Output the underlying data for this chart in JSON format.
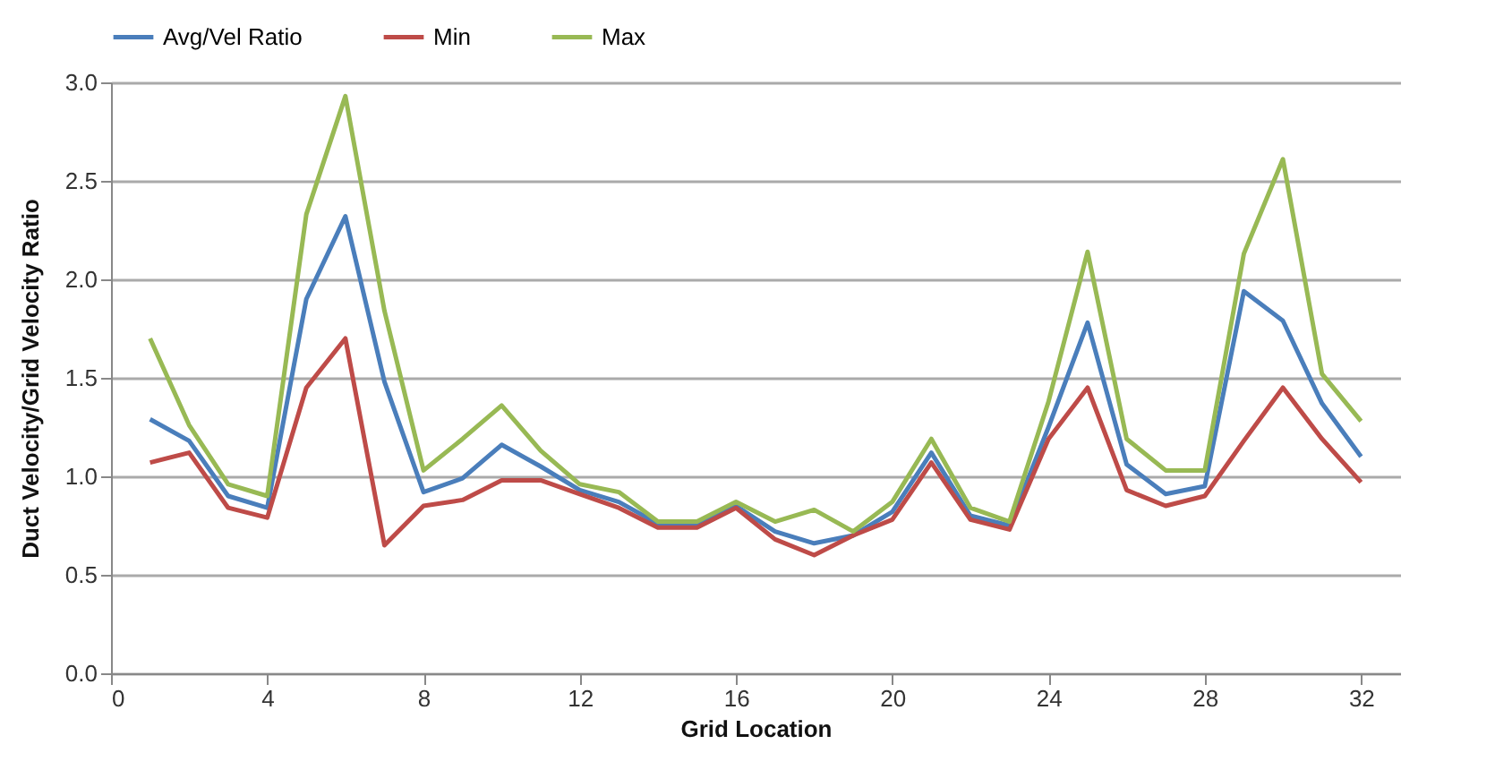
{
  "chart_data": {
    "type": "line",
    "xlabel": "Grid Location",
    "ylabel": "Duct Velocity/Grid Velocity Ratio",
    "x": [
      1,
      2,
      3,
      4,
      5,
      6,
      7,
      8,
      9,
      10,
      11,
      12,
      13,
      14,
      15,
      16,
      17,
      18,
      19,
      20,
      21,
      22,
      23,
      24,
      25,
      26,
      27,
      28,
      29,
      30,
      31,
      32
    ],
    "series": [
      {
        "name": "Avg/Vel Ratio",
        "color": "#4a7ebb",
        "values": [
          1.29,
          1.18,
          0.9,
          0.84,
          1.9,
          2.32,
          1.48,
          0.92,
          0.99,
          1.16,
          1.05,
          0.93,
          0.87,
          0.76,
          0.76,
          0.85,
          0.72,
          0.66,
          0.7,
          0.82,
          1.12,
          0.8,
          0.75,
          1.25,
          1.78,
          1.06,
          0.91,
          0.95,
          1.94,
          1.79,
          1.37,
          1.1
        ]
      },
      {
        "name": "Min",
        "color": "#be4b48",
        "values": [
          1.07,
          1.12,
          0.84,
          0.79,
          1.45,
          1.7,
          0.65,
          0.85,
          0.88,
          0.98,
          0.98,
          0.91,
          0.84,
          0.74,
          0.74,
          0.84,
          0.68,
          0.6,
          0.7,
          0.78,
          1.07,
          0.78,
          0.73,
          1.19,
          1.45,
          0.93,
          0.85,
          0.9,
          1.18,
          1.45,
          1.19,
          0.97
        ]
      },
      {
        "name": "Max",
        "color": "#98b954",
        "values": [
          1.7,
          1.26,
          0.96,
          0.9,
          2.33,
          2.93,
          1.84,
          1.03,
          1.19,
          1.36,
          1.13,
          0.96,
          0.92,
          0.77,
          0.77,
          0.87,
          0.77,
          0.83,
          0.72,
          0.87,
          1.19,
          0.84,
          0.77,
          1.38,
          2.14,
          1.19,
          1.03,
          1.03,
          2.13,
          2.61,
          1.52,
          1.28
        ]
      }
    ],
    "xlim": [
      0,
      33
    ],
    "xticks": [
      0,
      4,
      8,
      12,
      16,
      20,
      24,
      28,
      32
    ],
    "ylim": [
      0,
      3
    ],
    "yticks": [
      {
        "value": 0,
        "label": "0.0"
      },
      {
        "value": 0.5,
        "label": "0.5"
      },
      {
        "value": 1,
        "label": "1.0"
      },
      {
        "value": 1.5,
        "label": "1.5"
      },
      {
        "value": 2,
        "label": "2.0"
      },
      {
        "value": 2.5,
        "label": "2.5"
      },
      {
        "value": 3,
        "label": "3.0"
      }
    ],
    "grid": "y",
    "legend": "top",
    "marker": "none",
    "line_style": "solid"
  }
}
